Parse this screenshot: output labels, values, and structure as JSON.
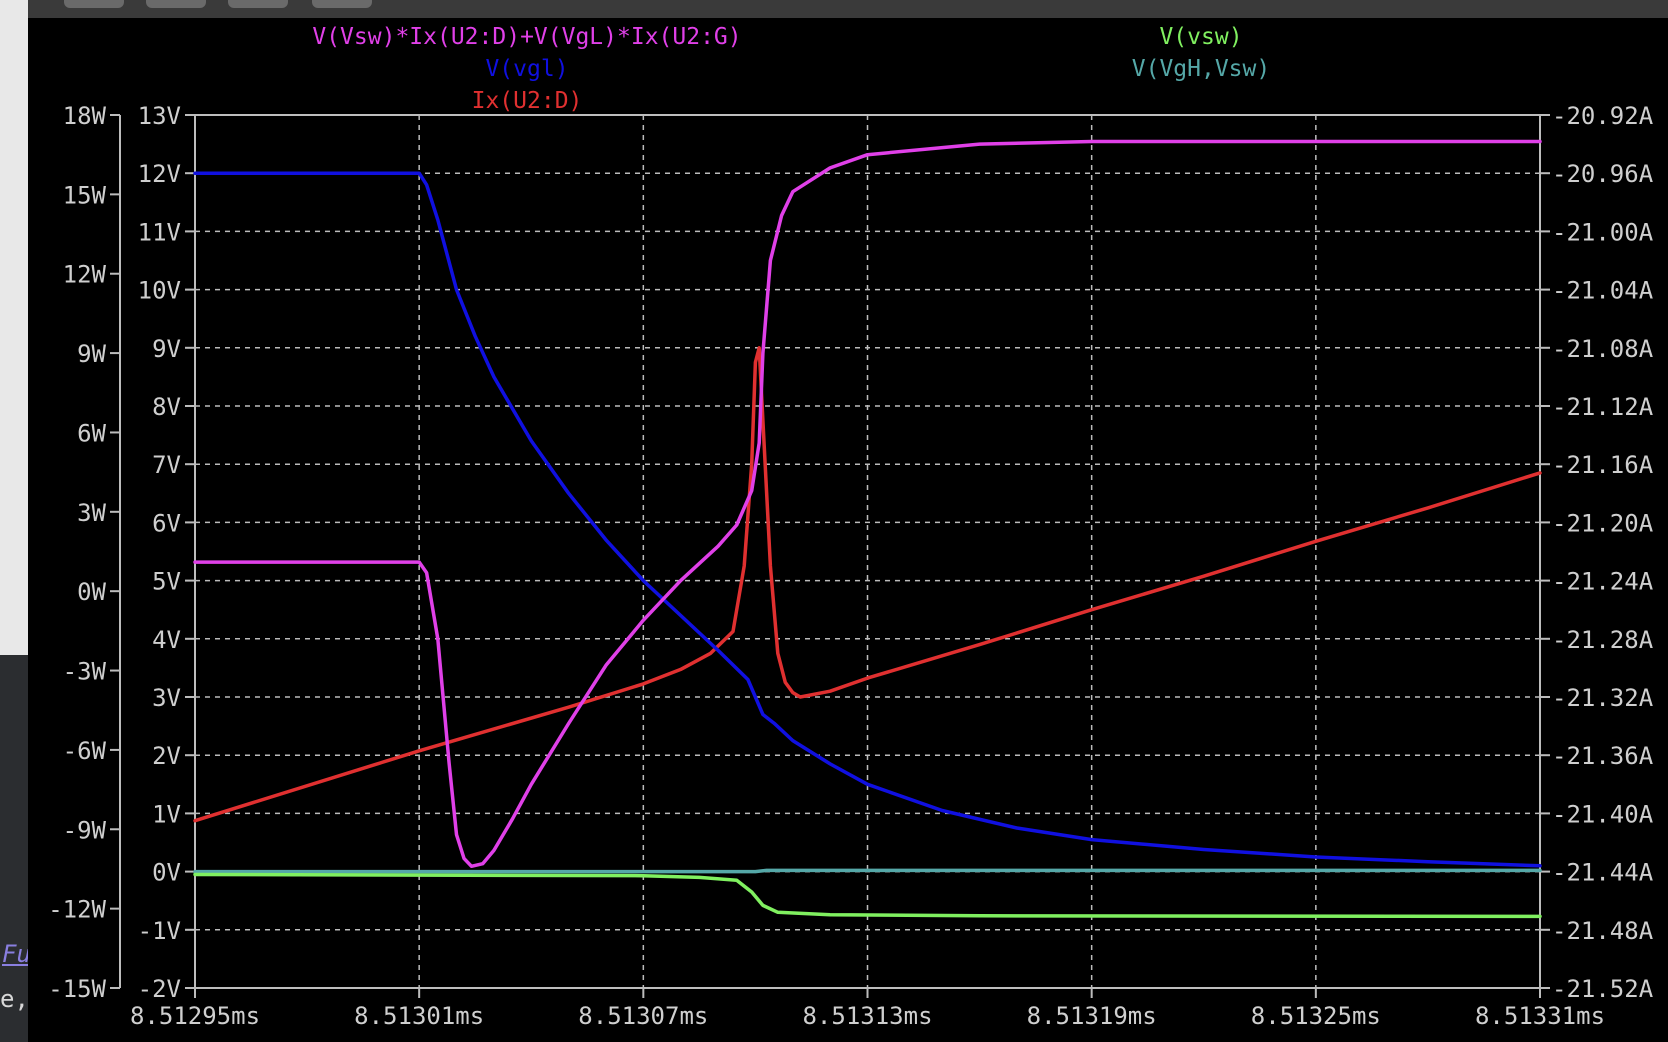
{
  "editor": {
    "snippet_1": "Fu",
    "snippet_2": "e,"
  },
  "chart_data": {
    "type": "line",
    "grid": true,
    "x": {
      "ticks": [
        8.51295,
        8.51301,
        8.51307,
        8.51313,
        8.51319,
        8.51325,
        8.51331
      ],
      "tick_labels": [
        "8.51295ms",
        "8.51301ms",
        "8.51307ms",
        "8.51313ms",
        "8.51319ms",
        "8.51325ms",
        "8.51331ms"
      ],
      "range": [
        8.51295,
        8.51331
      ],
      "unit": "ms"
    },
    "y_axes": {
      "power": {
        "range": [
          -15,
          18
        ],
        "ticks": [
          18,
          15,
          12,
          9,
          6,
          3,
          0,
          -3,
          -6,
          -9,
          -12,
          -15
        ],
        "tick_labels": [
          "18W",
          "15W",
          "12W",
          "9W",
          "6W",
          "3W",
          "0W",
          "-3W",
          "-6W",
          "-9W",
          "-12W",
          "-15W"
        ]
      },
      "voltage": {
        "range": [
          -2,
          13
        ],
        "ticks": [
          13,
          12,
          11,
          10,
          9,
          8,
          7,
          6,
          5,
          4,
          3,
          2,
          1,
          0,
          -1,
          -2
        ],
        "tick_labels": [
          "13V",
          "12V",
          "11V",
          "10V",
          "9V",
          "8V",
          "7V",
          "6V",
          "5V",
          "4V",
          "3V",
          "2V",
          "1V",
          "0V",
          "-1V",
          "-2V"
        ]
      },
      "current": {
        "range": [
          -21.52,
          -20.92
        ],
        "ticks": [
          -20.92,
          -20.96,
          -21.0,
          -21.04,
          -21.08,
          -21.12,
          -21.16,
          -21.2,
          -21.24,
          -21.28,
          -21.32,
          -21.36,
          -21.4,
          -21.44,
          -21.48,
          -21.52
        ],
        "tick_labels": [
          "-20.92A",
          "-20.96A",
          "-21.00A",
          "-21.04A",
          "-21.08A",
          "-21.12A",
          "-21.16A",
          "-21.20A",
          "-21.24A",
          "-21.28A",
          "-21.32A",
          "-21.36A",
          "-21.40A",
          "-21.44A",
          "-21.48A",
          "-21.52A"
        ]
      }
    },
    "series": [
      {
        "name": "V(Vsw)*Ix(U2:D)+V(VgL)*Ix(U2:G)",
        "axis": "power",
        "color": "#e040e8",
        "points": [
          [
            8.51295,
            1.1
          ],
          [
            8.51301,
            1.1
          ],
          [
            8.513012,
            0.7
          ],
          [
            8.513015,
            -1.8
          ],
          [
            8.513018,
            -6.5
          ],
          [
            8.51302,
            -9.2
          ],
          [
            8.513022,
            -10.1
          ],
          [
            8.513024,
            -10.4
          ],
          [
            8.513027,
            -10.3
          ],
          [
            8.51303,
            -9.8
          ],
          [
            8.513035,
            -8.6
          ],
          [
            8.51304,
            -7.3
          ],
          [
            8.51305,
            -5.0
          ],
          [
            8.51306,
            -2.8
          ],
          [
            8.51307,
            -1.1
          ],
          [
            8.51308,
            0.4
          ],
          [
            8.51309,
            1.7
          ],
          [
            8.513095,
            2.5
          ],
          [
            8.513099,
            3.8
          ],
          [
            8.513101,
            5.6
          ],
          [
            8.513102,
            9.0
          ],
          [
            8.513104,
            12.5
          ],
          [
            8.513107,
            14.2
          ],
          [
            8.51311,
            15.1
          ],
          [
            8.51312,
            16.0
          ],
          [
            8.51313,
            16.5
          ],
          [
            8.51316,
            16.9
          ],
          [
            8.51319,
            17.0
          ],
          [
            8.51325,
            17.0
          ],
          [
            8.51331,
            17.0
          ]
        ]
      },
      {
        "name": "V(vgl)",
        "axis": "voltage",
        "color": "#1010e0",
        "points": [
          [
            8.51295,
            12.0
          ],
          [
            8.51301,
            12.0
          ],
          [
            8.513012,
            11.8
          ],
          [
            8.513015,
            11.2
          ],
          [
            8.51302,
            10.0
          ],
          [
            8.513025,
            9.2
          ],
          [
            8.51303,
            8.5
          ],
          [
            8.51304,
            7.4
          ],
          [
            8.51305,
            6.5
          ],
          [
            8.51306,
            5.7
          ],
          [
            8.51307,
            5.0
          ],
          [
            8.51308,
            4.4
          ],
          [
            8.51309,
            3.8
          ],
          [
            8.513098,
            3.3
          ],
          [
            8.5131,
            3.0
          ],
          [
            8.513102,
            2.7
          ],
          [
            8.513105,
            2.55
          ],
          [
            8.51311,
            2.25
          ],
          [
            8.51312,
            1.85
          ],
          [
            8.51313,
            1.5
          ],
          [
            8.51315,
            1.05
          ],
          [
            8.51317,
            0.75
          ],
          [
            8.51319,
            0.55
          ],
          [
            8.51322,
            0.38
          ],
          [
            8.51325,
            0.25
          ],
          [
            8.51328,
            0.17
          ],
          [
            8.51331,
            0.1
          ]
        ]
      },
      {
        "name": "Ix(U2:D)",
        "axis": "current",
        "color": "#e03030",
        "points": [
          [
            8.51295,
            -21.405
          ],
          [
            8.51301,
            -21.357
          ],
          [
            8.51305,
            -21.327
          ],
          [
            8.51307,
            -21.311
          ],
          [
            8.51308,
            -21.301
          ],
          [
            8.513088,
            -21.29
          ],
          [
            8.513094,
            -21.275
          ],
          [
            8.513097,
            -21.23
          ],
          [
            8.513099,
            -21.16
          ],
          [
            8.5131,
            -21.09
          ],
          [
            8.513101,
            -21.08
          ],
          [
            8.513102,
            -21.13
          ],
          [
            8.513104,
            -21.23
          ],
          [
            8.513106,
            -21.29
          ],
          [
            8.513108,
            -21.31
          ],
          [
            8.51311,
            -21.317
          ],
          [
            8.513112,
            -21.32
          ],
          [
            8.51312,
            -21.316
          ],
          [
            8.51313,
            -21.307
          ],
          [
            8.51316,
            -21.284
          ],
          [
            8.51319,
            -21.26
          ],
          [
            8.51322,
            -21.237
          ],
          [
            8.51325,
            -21.213
          ],
          [
            8.51328,
            -21.19
          ],
          [
            8.51331,
            -21.166
          ]
        ]
      },
      {
        "name": "V(vsw)",
        "axis": "voltage",
        "color": "#80f060",
        "points": [
          [
            8.51295,
            -0.05
          ],
          [
            8.51307,
            -0.07
          ],
          [
            8.513085,
            -0.1
          ],
          [
            8.513095,
            -0.15
          ],
          [
            8.513099,
            -0.35
          ],
          [
            8.513102,
            -0.58
          ],
          [
            8.513106,
            -0.7
          ],
          [
            8.51312,
            -0.74
          ],
          [
            8.51316,
            -0.76
          ],
          [
            8.51331,
            -0.77
          ]
        ]
      },
      {
        "name": "V(VgH,Vsw)",
        "axis": "voltage",
        "color": "#55a8a8",
        "points": [
          [
            8.51295,
            0.0
          ],
          [
            8.5131,
            0.0
          ],
          [
            8.513103,
            0.02
          ],
          [
            8.51331,
            0.02
          ]
        ]
      }
    ]
  }
}
